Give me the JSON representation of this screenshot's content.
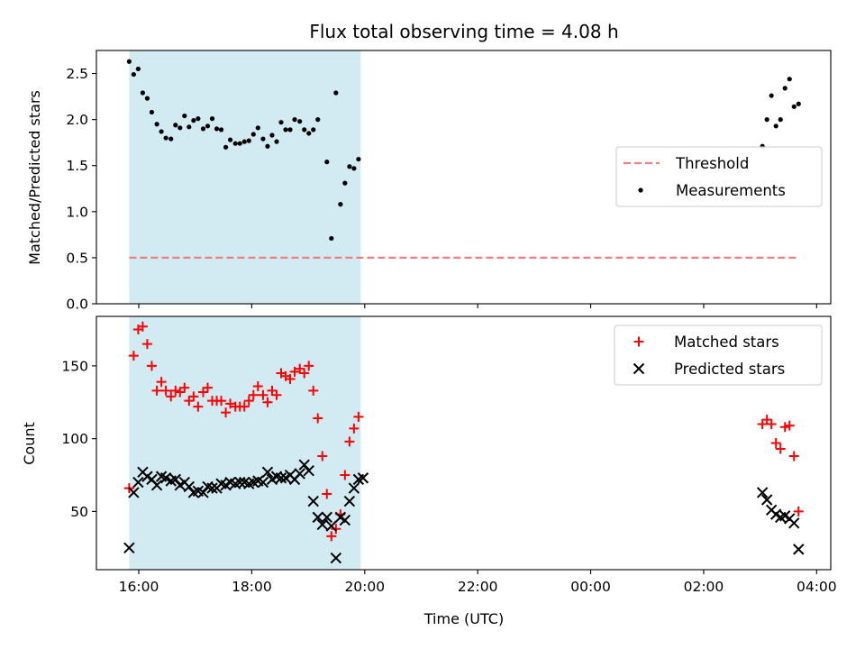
{
  "chart_data": [
    {
      "type": "scatter",
      "title": "Flux total observing time = 4.08 h",
      "xlabel": "",
      "ylabel": "Matched/Predicted stars",
      "xlim": [
        15.25,
        28.25
      ],
      "ylim": [
        0,
        2.75
      ],
      "xticks": [
        16,
        18,
        20,
        22,
        24,
        26,
        28
      ],
      "yticks": [
        0.0,
        0.5,
        1.0,
        1.5,
        2.0,
        2.5
      ],
      "ytick_labels": [
        "0.0",
        "0.5",
        "1.0",
        "1.5",
        "2.0",
        "2.5"
      ],
      "grid": false,
      "legend_position": "center-right",
      "highlight_span": {
        "x_start": 15.83,
        "x_end": 19.93,
        "color": "#add8e6"
      },
      "threshold": {
        "name": "Threshold",
        "y": 0.5,
        "x_start": 15.83,
        "x_end": 27.65,
        "color": "#f08080"
      },
      "series": [
        {
          "name": "Measurements",
          "color": "#000000",
          "marker": "dot",
          "points": [
            [
              15.83,
              2.63
            ],
            [
              15.91,
              2.49
            ],
            [
              15.99,
              2.55
            ],
            [
              16.07,
              2.29
            ],
            [
              16.15,
              2.23
            ],
            [
              16.23,
              2.08
            ],
            [
              16.32,
              1.95
            ],
            [
              16.4,
              1.87
            ],
            [
              16.48,
              1.8
            ],
            [
              16.57,
              1.79
            ],
            [
              16.65,
              1.94
            ],
            [
              16.73,
              1.91
            ],
            [
              16.81,
              2.04
            ],
            [
              16.89,
              1.92
            ],
            [
              16.97,
              1.99
            ],
            [
              17.05,
              2.01
            ],
            [
              17.14,
              1.9
            ],
            [
              17.22,
              1.93
            ],
            [
              17.3,
              2.01
            ],
            [
              17.38,
              1.9
            ],
            [
              17.46,
              1.89
            ],
            [
              17.54,
              1.7
            ],
            [
              17.62,
              1.78
            ],
            [
              17.71,
              1.74
            ],
            [
              17.79,
              1.74
            ],
            [
              17.87,
              1.76
            ],
            [
              17.95,
              1.77
            ],
            [
              18.03,
              1.84
            ],
            [
              18.11,
              1.91
            ],
            [
              18.2,
              1.79
            ],
            [
              18.28,
              1.71
            ],
            [
              18.36,
              1.83
            ],
            [
              18.44,
              1.76
            ],
            [
              18.52,
              1.97
            ],
            [
              18.6,
              1.89
            ],
            [
              18.68,
              1.89
            ],
            [
              18.76,
              2.0
            ],
            [
              18.85,
              1.98
            ],
            [
              18.93,
              1.89
            ],
            [
              19.01,
              1.85
            ],
            [
              19.09,
              1.89
            ],
            [
              19.17,
              2.0
            ],
            [
              19.33,
              1.54
            ],
            [
              19.41,
              0.71
            ],
            [
              19.49,
              2.29
            ],
            [
              19.57,
              1.08
            ],
            [
              19.65,
              1.31
            ],
            [
              19.73,
              1.49
            ],
            [
              19.81,
              1.47
            ],
            [
              19.89,
              1.57
            ],
            [
              27.04,
              1.71
            ],
            [
              27.12,
              2.0
            ],
            [
              27.2,
              2.26
            ],
            [
              27.28,
              1.93
            ],
            [
              27.36,
              2.0
            ],
            [
              27.44,
              2.34
            ],
            [
              27.52,
              2.44
            ],
            [
              27.6,
              2.14
            ],
            [
              27.68,
              2.17
            ]
          ]
        }
      ]
    },
    {
      "type": "scatter",
      "title": "",
      "xlabel": "Time (UTC)",
      "ylabel": "Count",
      "xlim": [
        15.25,
        28.25
      ],
      "ylim": [
        10,
        184
      ],
      "xticks": [
        16,
        18,
        20,
        22,
        24,
        26,
        28
      ],
      "xtick_labels": [
        "16:00",
        "18:00",
        "20:00",
        "22:00",
        "00:00",
        "02:00",
        "04:00"
      ],
      "yticks": [
        50,
        100,
        150
      ],
      "ytick_labels": [
        "50",
        "100",
        "150"
      ],
      "grid": false,
      "legend_position": "top-right",
      "highlight_span": {
        "x_start": 15.83,
        "x_end": 19.93,
        "color": "#add8e6"
      },
      "series": [
        {
          "name": "Matched stars",
          "color": "#ff0000",
          "marker": "plus",
          "points": [
            [
              15.83,
              66
            ],
            [
              15.91,
              157
            ],
            [
              15.99,
              175
            ],
            [
              16.07,
              177
            ],
            [
              16.15,
              165
            ],
            [
              16.23,
              150
            ],
            [
              16.32,
              133
            ],
            [
              16.4,
              139
            ],
            [
              16.48,
              133
            ],
            [
              16.57,
              129
            ],
            [
              16.65,
              133
            ],
            [
              16.73,
              132
            ],
            [
              16.81,
              135
            ],
            [
              16.89,
              126
            ],
            [
              16.97,
              129
            ],
            [
              17.05,
              122
            ],
            [
              17.14,
              132
            ],
            [
              17.22,
              135
            ],
            [
              17.3,
              126
            ],
            [
              17.38,
              126
            ],
            [
              17.46,
              126
            ],
            [
              17.54,
              118
            ],
            [
              17.62,
              124
            ],
            [
              17.71,
              122
            ],
            [
              17.79,
              122
            ],
            [
              17.87,
              122
            ],
            [
              17.95,
              126
            ],
            [
              18.03,
              130
            ],
            [
              18.11,
              136
            ],
            [
              18.2,
              130
            ],
            [
              18.28,
              125
            ],
            [
              18.36,
              133
            ],
            [
              18.44,
              130
            ],
            [
              18.52,
              145
            ],
            [
              18.6,
              143
            ],
            [
              18.68,
              141
            ],
            [
              18.76,
              146
            ],
            [
              18.85,
              148
            ],
            [
              18.93,
              145
            ],
            [
              19.01,
              150
            ],
            [
              19.09,
              133
            ],
            [
              19.17,
              114
            ],
            [
              19.25,
              88
            ],
            [
              19.33,
              62
            ],
            [
              19.41,
              33
            ],
            [
              19.49,
              38
            ],
            [
              19.57,
              48
            ],
            [
              19.65,
              75
            ],
            [
              19.73,
              98
            ],
            [
              19.81,
              107
            ],
            [
              19.89,
              115
            ],
            [
              27.04,
              110
            ],
            [
              27.12,
              113
            ],
            [
              27.2,
              110
            ],
            [
              27.28,
              97
            ],
            [
              27.36,
              93
            ],
            [
              27.44,
              108
            ],
            [
              27.52,
              109
            ],
            [
              27.6,
              88
            ],
            [
              27.68,
              50
            ]
          ]
        },
        {
          "name": "Predicted stars",
          "color": "#000000",
          "marker": "x",
          "points": [
            [
              15.83,
              25
            ],
            [
              15.91,
              63
            ],
            [
              15.99,
              70
            ],
            [
              16.07,
              77
            ],
            [
              16.15,
              74
            ],
            [
              16.23,
              72
            ],
            [
              16.32,
              68
            ],
            [
              16.4,
              74
            ],
            [
              16.48,
              73
            ],
            [
              16.57,
              71
            ],
            [
              16.65,
              72
            ],
            [
              16.73,
              68
            ],
            [
              16.81,
              70
            ],
            [
              16.89,
              67
            ],
            [
              16.97,
              63
            ],
            [
              17.05,
              64
            ],
            [
              17.14,
              63
            ],
            [
              17.22,
              67
            ],
            [
              17.3,
              66
            ],
            [
              17.38,
              66
            ],
            [
              17.46,
              69
            ],
            [
              17.54,
              68
            ],
            [
              17.62,
              70
            ],
            [
              17.71,
              69
            ],
            [
              17.79,
              70
            ],
            [
              17.87,
              70
            ],
            [
              17.95,
              69
            ],
            [
              18.03,
              70
            ],
            [
              18.11,
              71
            ],
            [
              18.2,
              70
            ],
            [
              18.28,
              77
            ],
            [
              18.36,
              72
            ],
            [
              18.44,
              74
            ],
            [
              18.52,
              73
            ],
            [
              18.6,
              73
            ],
            [
              18.68,
              75
            ],
            [
              18.76,
              72
            ],
            [
              18.85,
              76
            ],
            [
              18.93,
              82
            ],
            [
              19.01,
              78
            ],
            [
              19.09,
              57
            ],
            [
              19.17,
              46
            ],
            [
              19.25,
              41
            ],
            [
              19.33,
              46
            ],
            [
              19.41,
              40
            ],
            [
              19.49,
              18
            ],
            [
              19.57,
              46
            ],
            [
              19.65,
              44
            ],
            [
              19.73,
              57
            ],
            [
              19.81,
              66
            ],
            [
              19.89,
              72
            ],
            [
              19.97,
              73
            ],
            [
              27.04,
              63
            ],
            [
              27.12,
              58
            ],
            [
              27.2,
              51
            ],
            [
              27.28,
              48
            ],
            [
              27.36,
              46
            ],
            [
              27.44,
              47
            ],
            [
              27.52,
              45
            ],
            [
              27.6,
              42
            ],
            [
              27.68,
              24
            ]
          ]
        }
      ]
    }
  ]
}
